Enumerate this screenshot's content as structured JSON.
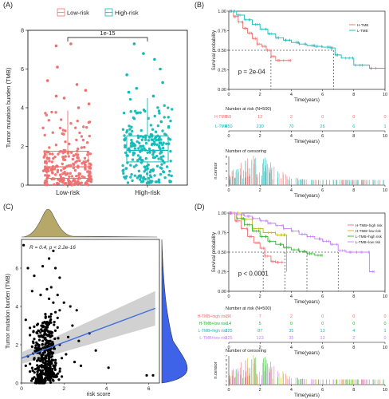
{
  "figure": {
    "panels": [
      "(A)",
      "(B)",
      "(C)",
      "(D)"
    ]
  },
  "colors": {
    "low": "#F07070",
    "high": "#14B8B8",
    "olive": "#A89A4E",
    "olive_fill": "#B5A869",
    "blue_fill": "#3E63E8",
    "reg_line": "#3E6FE0",
    "ci": "#BEBEBE",
    "green": "#2DB52D",
    "gold": "#C7B818",
    "violet": "#C77CFF"
  },
  "chart_data": [
    {
      "panel": "(A)",
      "type": "box",
      "legend_title": "",
      "legend": [
        "Low-risk",
        "High-risk"
      ],
      "categories": [
        "Low-risk",
        "High-risk"
      ],
      "ylabel": "Tumor mutation burden (TMB)",
      "xlabel": "",
      "ylim": [
        0,
        8
      ],
      "yticks": [
        0,
        2,
        4,
        6,
        8
      ],
      "pvalue": "1e-15",
      "boxes": [
        {
          "name": "Low-risk",
          "q1": 0.35,
          "median": 0.95,
          "q3": 1.75,
          "whisker_low": 0.0,
          "whisker_high": 3.85,
          "outliers": [
            4.0,
            4.2,
            4.5,
            4.6,
            4.9,
            5.2,
            5.4,
            6.1,
            7.2,
            7.3
          ]
        },
        {
          "name": "High-risk",
          "q1": 1.2,
          "median": 1.8,
          "q3": 2.55,
          "whisker_low": 0.1,
          "whisker_high": 4.5,
          "outliers": [
            4.6,
            4.8,
            5.0,
            5.3,
            5.7,
            6.0,
            6.5,
            6.8,
            7.3
          ]
        }
      ]
    },
    {
      "panel": "(B)",
      "type": "line",
      "subtype": "kaplan-meier",
      "ylabel": "Survival probability",
      "xlabel": "Time(years)",
      "xlim": [
        0,
        10
      ],
      "ylim": [
        0,
        1
      ],
      "xticks": [
        0,
        2,
        4,
        6,
        8,
        10
      ],
      "yticks": [
        "0.00",
        "0.25",
        "0.50",
        "0.75",
        "1.00"
      ],
      "pvalue": "p = 2e-04",
      "legend": [
        "H-TMB",
        "L-TMB"
      ],
      "median_survival": [
        2.7,
        6.7
      ],
      "series": [
        {
          "name": "H-TMB",
          "x": [
            0,
            0.3,
            0.6,
            0.9,
            1.2,
            1.5,
            1.8,
            2.1,
            2.4,
            2.7,
            3.0,
            3.5,
            4.0
          ],
          "y": [
            1.0,
            0.93,
            0.86,
            0.78,
            0.72,
            0.65,
            0.58,
            0.55,
            0.5,
            0.42,
            0.37,
            0.37,
            0.37
          ]
        },
        {
          "name": "L-TMB",
          "x": [
            0,
            0.5,
            1.0,
            1.5,
            2.0,
            2.5,
            3.0,
            3.5,
            4.0,
            4.5,
            5.0,
            5.5,
            6.0,
            6.5,
            6.8,
            7.2,
            8.0,
            9.0,
            10.0
          ],
          "y": [
            1.0,
            0.95,
            0.89,
            0.83,
            0.77,
            0.71,
            0.66,
            0.63,
            0.6,
            0.58,
            0.56,
            0.55,
            0.54,
            0.53,
            0.44,
            0.4,
            0.31,
            0.27,
            0.27
          ]
        }
      ],
      "risk_table": {
        "title": "Number at risk (N=500)",
        "xlabel": "Time(years)",
        "rows": [
          {
            "name": "H-TMB",
            "values": [
              "50",
              "12",
              "2",
              "0",
              "0",
              "0"
            ]
          },
          {
            "name": "L-TMB",
            "values": [
              "450",
              "210",
              "70",
              "26",
              "6",
              "1"
            ]
          }
        ]
      },
      "censoring": {
        "title": "Number of censoring",
        "ylabel": "n.censor",
        "xlabel": "Time(years)",
        "yticks": [
          0,
          2,
          4,
          6,
          8
        ]
      }
    },
    {
      "panel": "(C)",
      "type": "scatter",
      "xlabel": "risk score",
      "ylabel": "Tumor mutation burden (TMB)",
      "xlim": [
        0,
        6.5
      ],
      "ylim": [
        0,
        7.5
      ],
      "xticks": [
        0,
        2,
        4,
        6
      ],
      "yticks": [
        0,
        2,
        4,
        6
      ],
      "annotation": "R = 0.4, p < 2.2e-16",
      "regression": {
        "x": [
          0,
          6.3
        ],
        "y": [
          1.3,
          3.9
        ]
      },
      "points": [
        [
          0.1,
          7.2
        ],
        [
          0.3,
          6.0
        ],
        [
          0.6,
          5.6
        ],
        [
          1.0,
          6.1
        ],
        [
          1.3,
          6.5
        ],
        [
          1.5,
          6.9
        ],
        [
          1.6,
          6.0
        ],
        [
          1.8,
          5.5
        ],
        [
          0.5,
          4.8
        ],
        [
          0.9,
          4.6
        ],
        [
          1.2,
          4.9
        ],
        [
          1.4,
          5.0
        ],
        [
          1.7,
          4.6
        ],
        [
          2.0,
          4.2
        ],
        [
          2.3,
          4.0
        ],
        [
          2.6,
          3.8
        ],
        [
          3.2,
          2.6
        ],
        [
          3.5,
          1.7
        ],
        [
          4.1,
          0.8
        ],
        [
          5.9,
          0.4
        ],
        [
          6.2,
          0.4
        ],
        [
          0.2,
          3.3
        ],
        [
          0.4,
          2.5
        ],
        [
          0.5,
          1.9
        ],
        [
          0.3,
          1.4
        ],
        [
          0.2,
          0.9
        ],
        [
          0.4,
          0.6
        ],
        [
          0.6,
          0.3
        ],
        [
          0.8,
          1.2
        ],
        [
          0.9,
          0.5
        ],
        [
          1.0,
          2.2
        ],
        [
          1.1,
          1.6
        ],
        [
          1.2,
          0.8
        ],
        [
          1.3,
          3.1
        ],
        [
          1.4,
          2.6
        ],
        [
          1.5,
          1.8
        ],
        [
          1.6,
          1.2
        ],
        [
          1.7,
          2.9
        ],
        [
          1.8,
          2.0
        ],
        [
          1.9,
          1.3
        ],
        [
          1.3,
          0.3
        ],
        [
          1.4,
          0.5
        ],
        [
          1.5,
          0.9
        ],
        [
          1.2,
          1.9
        ],
        [
          1.1,
          2.8
        ],
        [
          1.0,
          0.9
        ],
        [
          0.7,
          1.6
        ],
        [
          0.6,
          2.3
        ],
        [
          2.1,
          1.5
        ],
        [
          2.2,
          2.4
        ],
        [
          2.4,
          3.0
        ],
        [
          2.5,
          1.1
        ],
        [
          2.7,
          2.2
        ],
        [
          2.8,
          0.9
        ],
        [
          1.6,
          3.7
        ],
        [
          1.7,
          3.4
        ],
        [
          1.5,
          4.2
        ],
        [
          1.4,
          3.6
        ],
        [
          1.8,
          3.8
        ],
        [
          1.3,
          4.4
        ]
      ],
      "marginal_top": "density",
      "marginal_right": "density"
    },
    {
      "panel": "(D)",
      "type": "line",
      "subtype": "kaplan-meier",
      "ylabel": "Survival probability",
      "xlabel": "Time(years)",
      "xlim": [
        0,
        10
      ],
      "ylim": [
        0,
        1
      ],
      "xticks": [
        0,
        2,
        4,
        6,
        8,
        10
      ],
      "yticks": [
        "0.00",
        "0.25",
        "0.50",
        "0.75",
        "1.00"
      ],
      "pvalue": "p < 0.0001",
      "legend": [
        "H-TMB+high risk",
        "H-TMB+low risk",
        "L-TMB+high risk",
        "L-TMB+low risk"
      ],
      "median_survival": [
        2.2,
        3.6,
        5.0,
        7.0
      ],
      "series": [
        {
          "name": "H-TMB+high risk",
          "x": [
            0,
            0.4,
            0.8,
            1.2,
            1.6,
            2.0,
            2.3,
            2.7,
            3.0,
            3.5
          ],
          "y": [
            1.0,
            0.9,
            0.8,
            0.7,
            0.62,
            0.55,
            0.45,
            0.38,
            0.37,
            0.37
          ]
        },
        {
          "name": "H-TMB+low risk",
          "x": [
            0,
            0.8,
            1.5,
            2.2,
            3.0,
            3.5,
            3.7
          ],
          "y": [
            1.0,
            0.92,
            0.8,
            0.75,
            0.72,
            0.72,
            0.25
          ]
        },
        {
          "name": "L-TMB+high risk",
          "x": [
            0,
            0.5,
            1.0,
            1.5,
            2.0,
            2.5,
            3.0,
            3.5,
            4.0,
            4.5,
            5.0,
            5.5,
            6.0
          ],
          "y": [
            1.0,
            0.93,
            0.85,
            0.77,
            0.7,
            0.64,
            0.6,
            0.56,
            0.53,
            0.51,
            0.48,
            0.46,
            0.46
          ]
        },
        {
          "name": "L-TMB+low risk",
          "x": [
            0,
            0.5,
            1.0,
            1.5,
            2.0,
            2.5,
            3.0,
            3.5,
            4.0,
            4.5,
            5.0,
            5.5,
            6.0,
            6.5,
            7.0,
            7.5,
            8.0,
            8.5,
            9.0,
            9.3
          ],
          "y": [
            1.0,
            0.98,
            0.96,
            0.93,
            0.9,
            0.87,
            0.84,
            0.8,
            0.77,
            0.73,
            0.7,
            0.67,
            0.64,
            0.6,
            0.52,
            0.5,
            0.5,
            0.5,
            0.25,
            0.25
          ]
        }
      ],
      "risk_table": {
        "title": "Number at risk (N=500)",
        "xlabel": "Time(years)",
        "rows": [
          {
            "name": "H-TMB+high risk",
            "values": [
              "36",
              "7",
              "2",
              "0",
              "0",
              "0"
            ]
          },
          {
            "name": "H-TMB+low risk",
            "values": [
              "14",
              "5",
              "0",
              "0",
              "0",
              "0"
            ]
          },
          {
            "name": "L-TMB+high risk",
            "values": [
              "225",
              "87",
              "35",
              "13",
              "4",
              "1"
            ]
          },
          {
            "name": "L-TMB+low risk",
            "values": [
              "225",
              "123",
              "35",
              "13",
              "2",
              "0"
            ]
          }
        ]
      },
      "censoring": {
        "title": "Number of censoring",
        "ylabel": "n.censor",
        "xlabel": "Time(years)",
        "yticks": [
          0,
          1,
          2,
          3,
          4,
          5,
          6,
          7
        ]
      }
    }
  ]
}
